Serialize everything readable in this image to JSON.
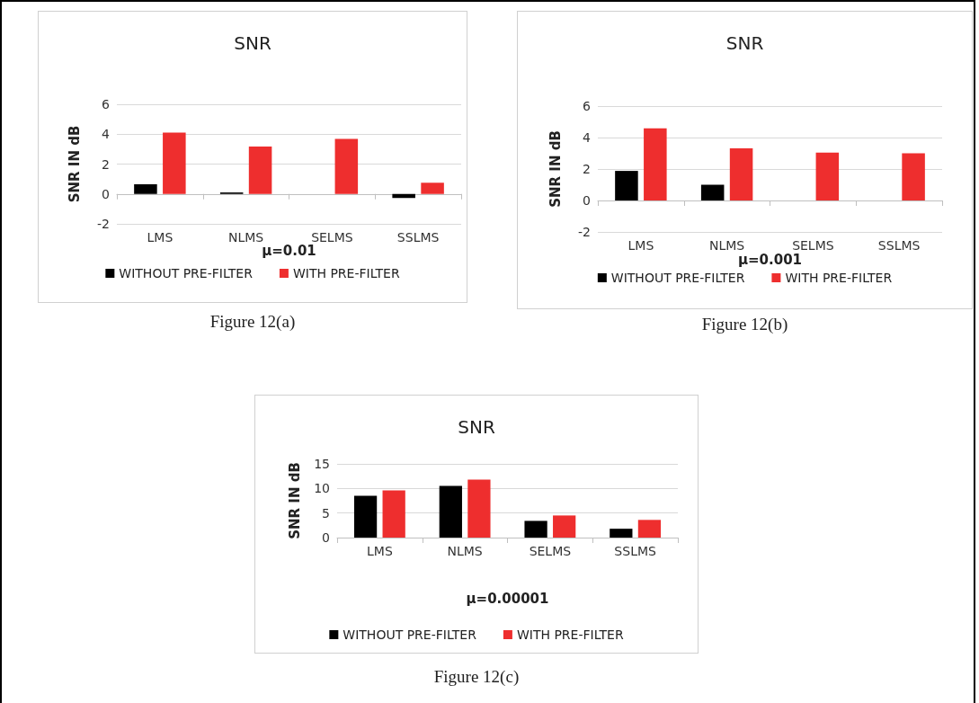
{
  "chart_data": [
    {
      "type": "bar",
      "title": "SNR",
      "ylabel": "SNR IN dB",
      "xlabel": "μ=0.01",
      "categories": [
        "LMS",
        "NLMS",
        "SELMS",
        "SSLMS"
      ],
      "series": [
        {
          "name": "WITHOUT PRE-FILTER",
          "color": "#000000",
          "values": [
            0.65,
            0.1,
            0,
            -0.27
          ]
        },
        {
          "name": "WITH PRE-FILTER",
          "color": "#ee2e2e",
          "values": [
            4.1,
            3.18,
            3.69,
            0.75
          ]
        }
      ],
      "ylim": [
        -2,
        6
      ],
      "yticks": [
        -2,
        0,
        2,
        4,
        6
      ],
      "grid": "y",
      "legend": "bottom",
      "annotations": [
        "Figure 12(a)"
      ]
    },
    {
      "type": "bar",
      "title": "SNR",
      "ylabel": "SNR IN dB",
      "xlabel": "μ=0.001",
      "categories": [
        "LMS",
        "NLMS",
        "SELMS",
        "SSLMS"
      ],
      "series": [
        {
          "name": "WITHOUT PRE-FILTER",
          "color": "#000000",
          "values": [
            1.88,
            1.0,
            0,
            0
          ]
        },
        {
          "name": "WITH PRE-FILTER",
          "color": "#ee2e2e",
          "values": [
            4.58,
            3.31,
            3.05,
            3.0
          ]
        }
      ],
      "ylim": [
        -2,
        6
      ],
      "yticks": [
        -2,
        0,
        2,
        4,
        6
      ],
      "grid": "y",
      "legend": "bottom",
      "annotations": [
        "Figure 12(b)"
      ]
    },
    {
      "type": "bar",
      "title": "SNR",
      "ylabel": "SNR IN dB",
      "xlabel": "μ=0.00001",
      "categories": [
        "LMS",
        "NLMS",
        "SELMS",
        "SSLMS"
      ],
      "series": [
        {
          "name": "WITHOUT PRE-FILTER",
          "color": "#000000",
          "values": [
            8.5,
            10.5,
            3.4,
            1.8
          ]
        },
        {
          "name": "WITH PRE-FILTER",
          "color": "#ee2e2e",
          "values": [
            9.6,
            11.8,
            4.5,
            3.6
          ]
        }
      ],
      "ylim": [
        0,
        15
      ],
      "yticks": [
        0,
        5,
        10,
        15
      ],
      "grid": "y",
      "legend": "bottom",
      "annotations": [
        "Figure 12(c)"
      ]
    }
  ]
}
